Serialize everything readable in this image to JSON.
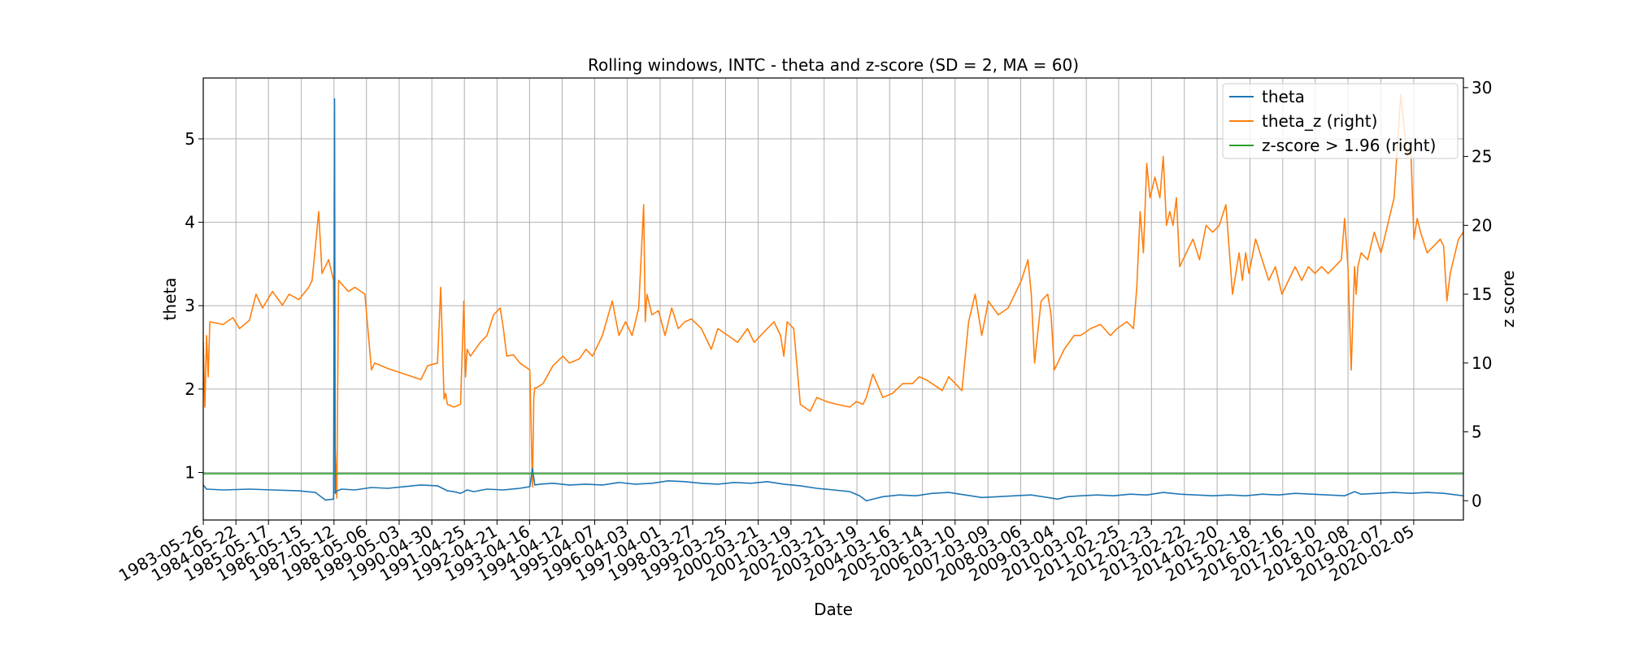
{
  "chart_data": {
    "type": "line",
    "title": "Rolling windows, INTC - theta and z-score (SD = 2, MA = 60)",
    "xlabel": "Date",
    "ylabel": "theta",
    "ylabel_right": "z score",
    "ylim": [
      0.43,
      5.73
    ],
    "ylim_right": [
      -1.4,
      30.7
    ],
    "yticks": [
      1,
      2,
      3,
      4,
      5
    ],
    "yticks_right": [
      0,
      5,
      10,
      15,
      20,
      25,
      30
    ],
    "grid": true,
    "legend_position": "top-right",
    "x_tick_labels": [
      "1983-05-26",
      "1984-05-22",
      "1985-05-17",
      "1986-05-15",
      "1987-05-12",
      "1988-05-06",
      "1989-05-03",
      "1990-04-30",
      "1991-04-25",
      "1992-04-21",
      "1993-04-16",
      "1994-04-12",
      "1995-04-07",
      "1996-04-03",
      "1997-04-01",
      "1998-03-27",
      "1999-03-25",
      "2000-03-21",
      "2001-03-19",
      "2002-03-21",
      "2003-03-19",
      "2004-03-16",
      "2005-03-14",
      "2006-03-10",
      "2007-03-09",
      "2008-03-06",
      "2009-03-04",
      "2010-03-02",
      "2011-02-25",
      "2012-02-23",
      "2013-02-22",
      "2014-02-20",
      "2015-02-18",
      "2016-02-16",
      "2017-02-10",
      "2018-02-08",
      "2019-02-07",
      "2020-02-05"
    ],
    "x_range": [
      1983.4,
      2021.6
    ],
    "series": [
      {
        "name": "theta",
        "axis": "left",
        "color": "#1f77b4",
        "x": [
          1983.4,
          1983.5,
          1984.0,
          1984.8,
          1985.5,
          1986.3,
          1986.8,
          1987.1,
          1987.35,
          1987.38,
          1987.4,
          1987.45,
          1987.6,
          1988.0,
          1988.5,
          1989.0,
          1989.5,
          1990.0,
          1990.5,
          1990.8,
          1991.0,
          1991.2,
          1991.4,
          1991.6,
          1992.0,
          1992.5,
          1993.0,
          1993.3,
          1993.38,
          1993.45,
          1993.6,
          1994.0,
          1994.5,
          1995.0,
          1995.5,
          1996.0,
          1996.5,
          1997.0,
          1997.5,
          1998.0,
          1998.5,
          1999.0,
          1999.5,
          2000.0,
          2000.5,
          2001.0,
          2001.5,
          2002.0,
          2002.5,
          2003.0,
          2003.3,
          2003.5,
          2004.0,
          2004.5,
          2005.0,
          2005.5,
          2006.0,
          2006.5,
          2007.0,
          2007.5,
          2008.0,
          2008.5,
          2009.0,
          2009.3,
          2009.6,
          2010.0,
          2010.5,
          2011.0,
          2011.5,
          2012.0,
          2012.5,
          2013.0,
          2013.5,
          2014.0,
          2014.5,
          2015.0,
          2015.5,
          2016.0,
          2016.5,
          2017.0,
          2017.5,
          2018.0,
          2018.3,
          2018.5,
          2019.0,
          2019.5,
          2020.0,
          2020.5,
          2021.0,
          2021.4,
          2021.6
        ],
        "values": [
          0.85,
          0.8,
          0.79,
          0.8,
          0.79,
          0.78,
          0.76,
          0.67,
          0.68,
          5.48,
          0.75,
          0.78,
          0.8,
          0.79,
          0.82,
          0.81,
          0.83,
          0.85,
          0.84,
          0.78,
          0.77,
          0.75,
          0.79,
          0.77,
          0.8,
          0.79,
          0.81,
          0.83,
          1.05,
          0.85,
          0.86,
          0.87,
          0.85,
          0.86,
          0.85,
          0.88,
          0.86,
          0.87,
          0.9,
          0.89,
          0.87,
          0.86,
          0.88,
          0.87,
          0.89,
          0.86,
          0.84,
          0.81,
          0.79,
          0.77,
          0.72,
          0.66,
          0.71,
          0.73,
          0.72,
          0.75,
          0.76,
          0.73,
          0.7,
          0.71,
          0.72,
          0.73,
          0.7,
          0.68,
          0.71,
          0.72,
          0.73,
          0.72,
          0.74,
          0.73,
          0.76,
          0.74,
          0.73,
          0.72,
          0.73,
          0.72,
          0.74,
          0.73,
          0.75,
          0.74,
          0.73,
          0.72,
          0.77,
          0.74,
          0.75,
          0.76,
          0.75,
          0.76,
          0.75,
          0.73,
          0.72
        ]
      },
      {
        "name": "theta_z (right)",
        "axis": "right",
        "color": "#ff7f0e",
        "x": [
          1983.4,
          1983.45,
          1983.5,
          1983.55,
          1983.6,
          1984.0,
          1984.3,
          1984.5,
          1984.8,
          1985.0,
          1985.2,
          1985.5,
          1985.8,
          1986.0,
          1986.3,
          1986.6,
          1986.7,
          1986.8,
          1986.9,
          1987.0,
          1987.2,
          1987.35,
          1987.38,
          1987.45,
          1987.5,
          1987.8,
          1988.0,
          1988.3,
          1988.5,
          1988.6,
          1989.0,
          1989.5,
          1990.0,
          1990.2,
          1990.5,
          1990.6,
          1990.7,
          1990.75,
          1990.8,
          1991.0,
          1991.2,
          1991.3,
          1991.35,
          1991.4,
          1991.5,
          1991.8,
          1992.0,
          1992.2,
          1992.4,
          1992.5,
          1992.6,
          1992.8,
          1993.0,
          1993.3,
          1993.38,
          1993.42,
          1993.45,
          1993.5,
          1993.7,
          1994.0,
          1994.3,
          1994.5,
          1994.8,
          1995.0,
          1995.2,
          1995.5,
          1995.8,
          1996.0,
          1996.2,
          1996.4,
          1996.6,
          1996.75,
          1996.8,
          1996.85,
          1996.9,
          1997.0,
          1997.2,
          1997.4,
          1997.6,
          1997.8,
          1998.0,
          1998.2,
          1998.5,
          1998.8,
          1999.0,
          1999.3,
          1999.6,
          1999.9,
          2000.1,
          2000.3,
          2000.5,
          2000.7,
          2000.9,
          2001.0,
          2001.1,
          2001.3,
          2001.5,
          2001.8,
          2002.0,
          2002.3,
          2002.6,
          2003.0,
          2003.2,
          2003.4,
          2003.5,
          2003.7,
          2004.0,
          2004.3,
          2004.6,
          2004.9,
          2005.1,
          2005.3,
          2005.5,
          2005.8,
          2006.0,
          2006.2,
          2006.4,
          2006.6,
          2006.8,
          2007.0,
          2007.2,
          2007.5,
          2007.8,
          2008.0,
          2008.2,
          2008.4,
          2008.5,
          2008.6,
          2008.8,
          2009.0,
          2009.1,
          2009.2,
          2009.3,
          2009.5,
          2009.8,
          2010.0,
          2010.3,
          2010.6,
          2010.9,
          2011.1,
          2011.4,
          2011.6,
          2011.7,
          2011.8,
          2011.9,
          2012.0,
          2012.1,
          2012.25,
          2012.4,
          2012.5,
          2012.6,
          2012.7,
          2012.8,
          2012.9,
          2013.0,
          2013.2,
          2013.4,
          2013.6,
          2013.8,
          2014.0,
          2014.2,
          2014.4,
          2014.6,
          2014.8,
          2014.9,
          2015.0,
          2015.1,
          2015.3,
          2015.5,
          2015.7,
          2015.9,
          2016.1,
          2016.3,
          2016.5,
          2016.7,
          2016.9,
          2017.1,
          2017.3,
          2017.5,
          2017.7,
          2017.9,
          2018.0,
          2018.1,
          2018.2,
          2018.3,
          2018.35,
          2018.4,
          2018.5,
          2018.7,
          2018.9,
          2019.1,
          2019.3,
          2019.5,
          2019.7,
          2019.9,
          2020.0,
          2020.1,
          2020.2,
          2020.3,
          2020.5,
          2020.7,
          2020.9,
          2021.0,
          2021.1,
          2021.2,
          2021.35,
          2021.45,
          2021.6
        ],
        "values": [
          11.5,
          6.8,
          12.0,
          9.0,
          13.0,
          12.8,
          13.3,
          12.5,
          13.1,
          15.0,
          14.0,
          15.2,
          14.2,
          15.0,
          14.6,
          15.5,
          16.0,
          18.5,
          21.0,
          16.5,
          17.5,
          16.0,
          5.0,
          0.2,
          16.0,
          15.2,
          15.5,
          15.0,
          9.5,
          10.0,
          9.6,
          9.2,
          8.8,
          9.8,
          10.0,
          15.5,
          7.4,
          7.8,
          7.0,
          6.8,
          7.0,
          14.5,
          9.0,
          11.0,
          10.5,
          11.5,
          12.0,
          13.5,
          14.0,
          12.5,
          10.5,
          10.6,
          10.0,
          9.5,
          1.0,
          7.5,
          8.2,
          8.2,
          8.5,
          9.8,
          10.5,
          10.0,
          10.3,
          11.0,
          10.5,
          12.0,
          14.5,
          12.0,
          13.0,
          12.0,
          14.0,
          21.5,
          13.0,
          15.0,
          14.5,
          13.5,
          13.8,
          12.0,
          14.0,
          12.5,
          13.0,
          13.2,
          12.5,
          11.0,
          12.5,
          12.0,
          11.5,
          12.5,
          11.5,
          12.0,
          12.5,
          13.0,
          12.0,
          10.5,
          13.0,
          12.5,
          7.0,
          6.5,
          7.5,
          7.2,
          7.0,
          6.8,
          7.2,
          7.0,
          7.5,
          9.2,
          7.5,
          7.8,
          8.5,
          8.5,
          9.0,
          8.8,
          8.5,
          8.0,
          9.0,
          8.5,
          8.0,
          13.0,
          15.0,
          12.0,
          14.5,
          13.5,
          14.0,
          15.0,
          16.0,
          17.5,
          15.0,
          10.0,
          14.5,
          15.0,
          13.5,
          9.5,
          10.0,
          11.0,
          12.0,
          12.0,
          12.5,
          12.8,
          12.0,
          12.5,
          13.0,
          12.5,
          15.5,
          21.0,
          18.0,
          24.5,
          22.0,
          23.5,
          22.0,
          25.0,
          20.0,
          21.0,
          20.0,
          22.0,
          17.0,
          18.0,
          19.0,
          17.5,
          20.0,
          19.5,
          20.0,
          21.5,
          15.0,
          18.0,
          16.0,
          18.0,
          16.5,
          19.0,
          17.5,
          16.0,
          17.0,
          15.0,
          16.0,
          17.0,
          16.0,
          17.0,
          16.5,
          17.0,
          16.5,
          17.0,
          17.5,
          20.5,
          17.0,
          9.5,
          17.0,
          15.0,
          17.0,
          18.0,
          17.5,
          19.5,
          18.0,
          20.0,
          22.0,
          29.5,
          25.0,
          26.0,
          19.0,
          20.5,
          19.5,
          18.0,
          18.5,
          19.0,
          18.5,
          14.5,
          16.5,
          18.0,
          19.0,
          19.5
        ]
      },
      {
        "name": "z-score > 1.96 (right)",
        "axis": "right",
        "color": "#2ca02c",
        "x": [
          1983.4,
          2021.6
        ],
        "values": [
          1.96,
          1.96
        ]
      }
    ]
  }
}
